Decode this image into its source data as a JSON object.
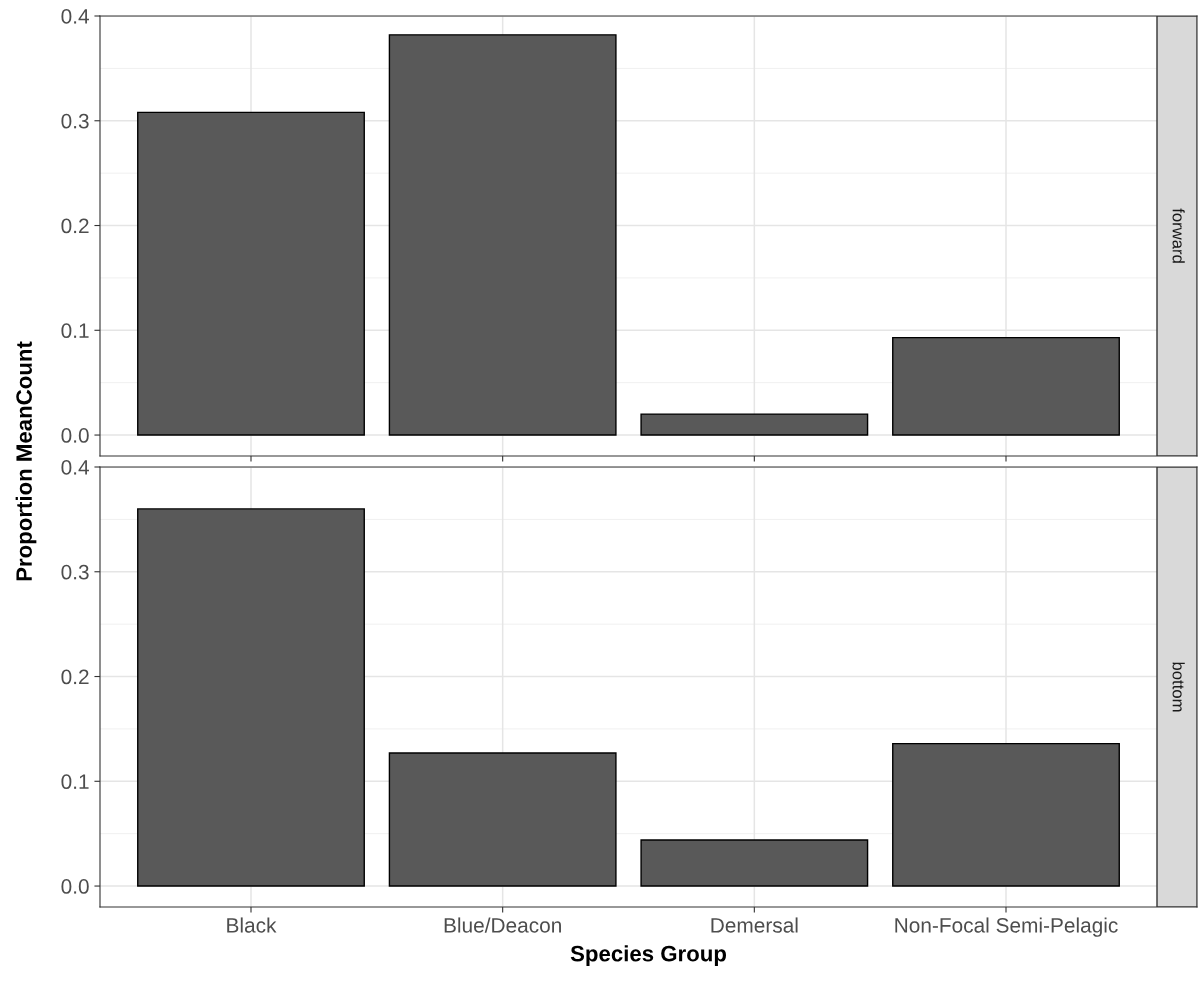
{
  "chart_data": [
    {
      "type": "bar",
      "title": "forward",
      "ylabel": "Proportion MeanCount",
      "categories": [
        null,
        null,
        null,
        null
      ],
      "values": [
        0.308,
        0.382,
        0.02,
        0.093
      ],
      "color": "#595959",
      "ylim": [
        -0.02,
        0.4
      ],
      "yticks": [
        {
          "value": 0.0,
          "label": "0.0"
        },
        {
          "value": 0.1,
          "label": "0.1"
        },
        {
          "value": 0.2,
          "label": "0.2"
        },
        {
          "value": 0.3,
          "label": "0.3"
        },
        {
          "value": 0.4,
          "label": "0.4"
        }
      ],
      "grid": true,
      "tick_labels": "y"
    },
    {
      "type": "bar",
      "title": "bottom",
      "xlabel": "Species Group",
      "categories": [
        "Black",
        "Blue/Deacon",
        "Demersal",
        "Non-Focal Semi-Pelagic"
      ],
      "values": [
        0.36,
        0.127,
        0.044,
        0.136
      ],
      "color": "#595959",
      "ylim": [
        -0.02,
        0.4
      ],
      "yticks": [
        {
          "value": 0.0,
          "label": "0.0"
        },
        {
          "value": 0.1,
          "label": "0.1"
        },
        {
          "value": 0.2,
          "label": "0.2"
        },
        {
          "value": 0.3,
          "label": "0.3"
        },
        {
          "value": 0.4,
          "label": "0.4"
        }
      ],
      "grid": true
    }
  ]
}
